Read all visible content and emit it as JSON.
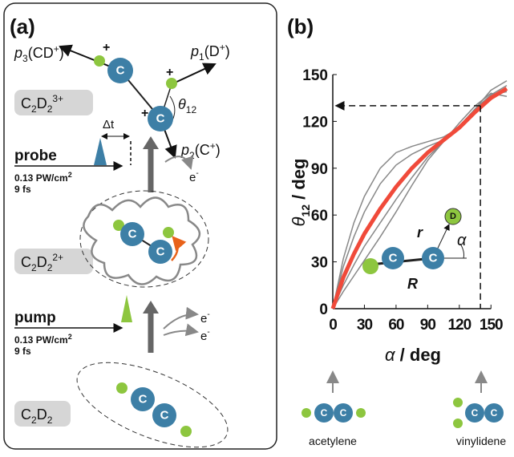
{
  "panel_a": {
    "label": "(a)",
    "momenta": [
      [
        "p",
        "3",
        "(CD",
        "+",
        ")"
      ],
      [
        "p",
        "1",
        "(D",
        "+",
        ")"
      ],
      [
        "p",
        "2",
        "(C",
        "+",
        ")"
      ]
    ],
    "charge": "+",
    "angle": [
      "θ",
      "12"
    ],
    "delay": "Δt",
    "probe": "probe",
    "pump": "pump",
    "intensity": [
      "0.13 PW/cm",
      "2"
    ],
    "duration": "9 fs",
    "electron": [
      "e",
      "-"
    ],
    "species": [
      [
        "C",
        "2",
        "D",
        "2",
        "3+"
      ],
      [
        "C",
        "2",
        "D",
        "2",
        "2+"
      ],
      [
        "C",
        "2",
        "D",
        "2"
      ]
    ],
    "atom": "C"
  },
  "chart_data": {
    "type": "line",
    "label": "(b)",
    "ylabel": [
      "θ",
      "12",
      " / deg"
    ],
    "xlabel": [
      "α",
      " / deg"
    ],
    "x": [
      0,
      10,
      20,
      30,
      45,
      60,
      75,
      90,
      105,
      120,
      135,
      150,
      165
    ],
    "series": [
      {
        "color": "#888888",
        "values": [
          0,
          32,
          55,
          72,
          90,
          100,
          104,
          107,
          110,
          116,
          128,
          140,
          146
        ]
      },
      {
        "color": "#888888",
        "values": [
          0,
          27,
          46,
          62,
          80,
          92,
          99,
          104,
          108,
          115,
          126,
          137,
          143
        ]
      },
      {
        "color": "#888888",
        "values": [
          0,
          15,
          28,
          40,
          55,
          70,
          84,
          97,
          107,
          117,
          128,
          137,
          139
        ]
      },
      {
        "color": "#888888",
        "values": [
          0,
          11,
          21,
          31,
          46,
          62,
          79,
          95,
          107,
          119,
          130,
          138,
          136
        ]
      },
      {
        "color": "#f04a3a",
        "values": [
          0,
          20,
          35,
          48,
          64,
          78,
          90,
          100,
          108,
          116,
          126,
          135,
          141
        ]
      }
    ],
    "xlim": [
      0,
      165
    ],
    "ylim": [
      0,
      150
    ],
    "xticks": [
      0,
      30,
      60,
      90,
      120,
      150
    ],
    "yticks": [
      0,
      30,
      60,
      90,
      120,
      150
    ],
    "guide": {
      "x": 140,
      "y": 130
    },
    "inset": {
      "r": "r",
      "alpha": "α",
      "R": "R",
      "D": "D",
      "C": "C"
    },
    "molecules": [
      "acetylene",
      "vinylidene"
    ]
  }
}
